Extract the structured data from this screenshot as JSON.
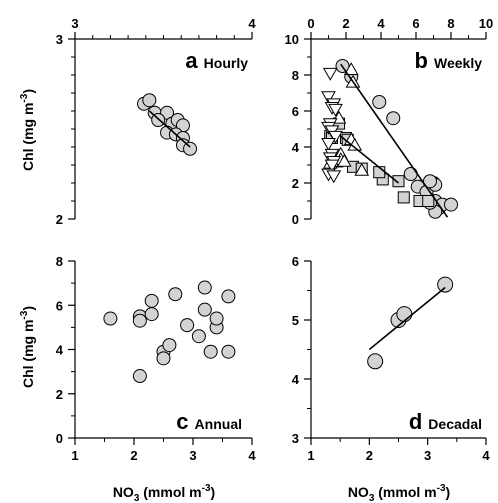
{
  "figure": {
    "ylabel_prefix": "Chl (mg m",
    "ylabel_exp": "-3",
    "ylabel_suffix": ")",
    "xlabel_main": "NO",
    "xlabel_sub": "3",
    "xlabel_mid": " (mmol m",
    "xlabel_exp": "-3",
    "xlabel_suffix": ")"
  },
  "colors": {
    "marker_fill": "#d3d3d3",
    "marker_stroke": "#000000",
    "fit_line": "#000000"
  },
  "chart_data": [
    {
      "type": "scatter",
      "letter": "a",
      "name": "Hourly",
      "x_ticks": [
        "3",
        "4"
      ],
      "y_ticks": [
        "3",
        "2"
      ],
      "xlim": [
        3,
        4
      ],
      "ylim": [
        2,
        3
      ],
      "marker": "circle",
      "points": [
        [
          3.39,
          2.64
        ],
        [
          3.42,
          2.66
        ],
        [
          3.45,
          2.59
        ],
        [
          3.52,
          2.59
        ],
        [
          3.47,
          2.55
        ],
        [
          3.55,
          2.53
        ],
        [
          3.58,
          2.55
        ],
        [
          3.61,
          2.52
        ],
        [
          3.52,
          2.48
        ],
        [
          3.57,
          2.47
        ],
        [
          3.61,
          2.45
        ],
        [
          3.61,
          2.41
        ],
        [
          3.65,
          2.39
        ]
      ],
      "fit": [
        [
          3.42,
          2.6
        ],
        [
          3.65,
          2.4
        ]
      ]
    },
    {
      "type": "scatter",
      "letter": "b",
      "name": "Weekly",
      "x_ticks": [
        "0",
        "2",
        "4",
        "6",
        "8",
        "10"
      ],
      "y_ticks": [
        "0",
        "2",
        "4",
        "6",
        "8",
        "10"
      ],
      "xlim": [
        0,
        10
      ],
      "ylim": [
        0,
        10
      ],
      "series": [
        {
          "marker": "circle",
          "points": [
            [
              1.8,
              8.5
            ],
            [
              2.3,
              7.9
            ],
            [
              3.9,
              6.5
            ],
            [
              4.7,
              5.6
            ],
            [
              5.7,
              2.5
            ],
            [
              6.1,
              1.8
            ],
            [
              6.6,
              1.5
            ],
            [
              7.0,
              2.0
            ],
            [
              7.1,
              1.9
            ],
            [
              6.8,
              2.1
            ],
            [
              7.1,
              1.0
            ],
            [
              7.3,
              0.6
            ],
            [
              7.5,
              0.8
            ],
            [
              7.1,
              0.4
            ],
            [
              8.0,
              0.8
            ],
            [
              6.8,
              0.9
            ]
          ],
          "fit": [
            [
              1.7,
              8.6
            ],
            [
              7.8,
              0.1
            ]
          ]
        },
        {
          "marker": "square",
          "points": [
            [
              1.6,
              5.3
            ],
            [
              2.0,
              4.5
            ],
            [
              2.1,
              4.4
            ],
            [
              1.1,
              4.6
            ],
            [
              1.2,
              4.5
            ],
            [
              1.5,
              3.2
            ],
            [
              2.4,
              2.9
            ],
            [
              2.9,
              2.8
            ],
            [
              4.1,
              2.2
            ],
            [
              3.9,
              2.6
            ],
            [
              5.0,
              2.1
            ],
            [
              5.3,
              1.2
            ],
            [
              6.2,
              1.0
            ],
            [
              6.7,
              1.0
            ]
          ]
        },
        {
          "marker": "triangle-up",
          "points": [
            [
              2.3,
              8.3
            ],
            [
              2.4,
              7.6
            ],
            [
              1.6,
              5.6
            ],
            [
              2.3,
              4.4
            ],
            [
              2.5,
              4.1
            ],
            [
              1.7,
              3.6
            ],
            [
              1.7,
              3.3
            ],
            [
              1.2,
              3.2
            ],
            [
              1.9,
              3.2
            ],
            [
              2.9,
              2.7
            ],
            [
              1.1,
              3.1
            ]
          ],
          "fit": [
            [
              1.7,
              4.6
            ],
            [
              5.0,
              2.0
            ]
          ]
        },
        {
          "marker": "triangle-down",
          "points": [
            [
              1.1,
              8.1
            ],
            [
              1.0,
              6.8
            ],
            [
              1.3,
              6.4
            ],
            [
              1.2,
              6.2
            ],
            [
              1.4,
              6.1
            ],
            [
              1.1,
              5.3
            ],
            [
              1.0,
              5.1
            ],
            [
              1.2,
              4.9
            ],
            [
              1.4,
              4.6
            ],
            [
              1.0,
              4.2
            ],
            [
              1.2,
              3.6
            ],
            [
              1.1,
              3.4
            ],
            [
              1.3,
              3.2
            ],
            [
              1.2,
              3.0
            ],
            [
              1.0,
              2.5
            ],
            [
              1.3,
              2.4
            ]
          ]
        }
      ]
    },
    {
      "type": "scatter",
      "letter": "c",
      "name": "Annual",
      "x_ticks": [
        "1",
        "2",
        "3",
        "4"
      ],
      "y_ticks": [
        "0",
        "2",
        "4",
        "6",
        "8"
      ],
      "xlim": [
        1,
        4
      ],
      "ylim": [
        0,
        8
      ],
      "marker": "circle",
      "points": [
        [
          1.6,
          5.4
        ],
        [
          2.1,
          5.5
        ],
        [
          2.1,
          5.3
        ],
        [
          2.3,
          6.2
        ],
        [
          2.3,
          5.6
        ],
        [
          2.1,
          2.8
        ],
        [
          2.5,
          3.9
        ],
        [
          2.5,
          3.6
        ],
        [
          2.6,
          4.2
        ],
        [
          2.7,
          6.5
        ],
        [
          2.9,
          5.1
        ],
        [
          3.1,
          4.6
        ],
        [
          3.2,
          5.8
        ],
        [
          3.2,
          6.8
        ],
        [
          3.3,
          3.9
        ],
        [
          3.4,
          5.0
        ],
        [
          3.4,
          5.4
        ],
        [
          3.6,
          6.4
        ],
        [
          3.6,
          3.9
        ]
      ]
    },
    {
      "type": "scatter",
      "letter": "d",
      "name": "Decadal",
      "x_ticks": [
        "1",
        "2",
        "3",
        "4"
      ],
      "y_ticks": [
        "3",
        "4",
        "5",
        "6"
      ],
      "xlim": [
        1,
        4
      ],
      "ylim": [
        3,
        6
      ],
      "marker": "circle",
      "points": [
        [
          2.1,
          4.3
        ],
        [
          2.5,
          5.0
        ],
        [
          2.6,
          5.1
        ],
        [
          3.3,
          5.6
        ]
      ],
      "fit": [
        [
          2.0,
          4.5
        ],
        [
          3.3,
          5.55
        ]
      ]
    }
  ]
}
